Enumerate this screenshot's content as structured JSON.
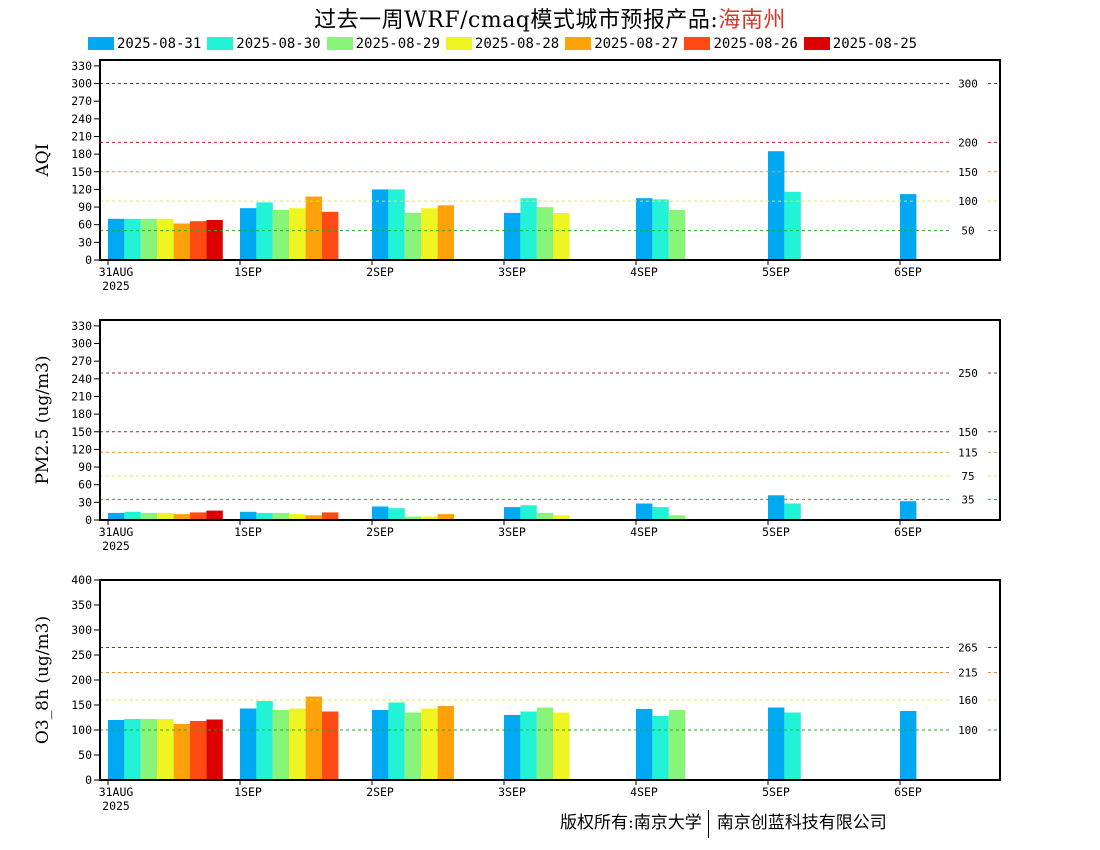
{
  "title": {
    "main": "过去一周WRF/cmaq模式城市预报产品:",
    "place": "海南州"
  },
  "series_names": [
    "2025-08-31",
    "2025-08-30",
    "2025-08-29",
    "2025-08-28",
    "2025-08-27",
    "2025-08-26",
    "2025-08-25"
  ],
  "series_colors": [
    "#00a9f2",
    "#22f2d6",
    "#88f57a",
    "#eef521",
    "#ffa20a",
    "#ff4a14",
    "#dc0000"
  ],
  "copyright": {
    "left": "版权所有:南京大学",
    "right": "南京创蓝科技有限公司"
  },
  "chart_data": [
    {
      "type": "bar",
      "ylabel": "AQI",
      "ylim": [
        0,
        340
      ],
      "yticks": [
        0,
        30,
        60,
        90,
        120,
        150,
        180,
        210,
        240,
        270,
        300,
        330
      ],
      "day_labels": [
        "31AUG",
        "1SEP",
        "2SEP",
        "3SEP",
        "4SEP",
        "5SEP",
        "6SEP"
      ],
      "year_label": "2025",
      "thresholds": [
        {
          "value": 300,
          "label": "300",
          "color": "#9b1f57"
        },
        {
          "value": 200,
          "label": "200",
          "color": "#d60f0f"
        },
        {
          "value": 150,
          "label": "150",
          "color": "#ff8c1a"
        },
        {
          "value": 100,
          "label": "100",
          "color": "#e8e82a"
        },
        {
          "value": 50,
          "label": "50",
          "color": "#20b020"
        }
      ],
      "series": [
        {
          "name": "2025-08-31",
          "values": [
            70,
            88,
            120,
            80,
            105,
            185,
            112
          ]
        },
        {
          "name": "2025-08-30",
          "values": [
            70,
            98,
            120,
            105,
            103,
            116
          ]
        },
        {
          "name": "2025-08-29",
          "values": [
            70,
            85,
            80,
            90,
            85
          ]
        },
        {
          "name": "2025-08-28",
          "values": [
            70,
            88,
            88,
            80
          ]
        },
        {
          "name": "2025-08-27",
          "values": [
            62,
            108,
            93
          ]
        },
        {
          "name": "2025-08-26",
          "values": [
            66,
            82
          ]
        },
        {
          "name": "2025-08-25",
          "values": [
            68
          ]
        }
      ]
    },
    {
      "type": "bar",
      "ylabel": "PM2.5 (ug/m3)",
      "ylim": [
        0,
        340
      ],
      "yticks": [
        0,
        30,
        60,
        90,
        120,
        150,
        180,
        210,
        240,
        270,
        300,
        330
      ],
      "day_labels": [
        "31AUG",
        "1SEP",
        "2SEP",
        "3SEP",
        "4SEP",
        "5SEP",
        "6SEP"
      ],
      "year_label": "2025",
      "thresholds": [
        {
          "value": 250,
          "label": "250",
          "color": "#9b1f57"
        },
        {
          "value": 150,
          "label": "150",
          "color": "#d60f0f"
        },
        {
          "value": 115,
          "label": "115",
          "color": "#ff8c1a"
        },
        {
          "value": 75,
          "label": "75",
          "color": "#e8e82a"
        },
        {
          "value": 35,
          "label": "35",
          "color": "#20b020"
        }
      ],
      "series": [
        {
          "name": "2025-08-31",
          "values": [
            12,
            14,
            23,
            22,
            28,
            42,
            32
          ]
        },
        {
          "name": "2025-08-30",
          "values": [
            14,
            12,
            20,
            25,
            22,
            28
          ]
        },
        {
          "name": "2025-08-29",
          "values": [
            12,
            12,
            6,
            12,
            8
          ]
        },
        {
          "name": "2025-08-28",
          "values": [
            12,
            10,
            6,
            8
          ]
        },
        {
          "name": "2025-08-27",
          "values": [
            10,
            8,
            10
          ]
        },
        {
          "name": "2025-08-26",
          "values": [
            13,
            13
          ]
        },
        {
          "name": "2025-08-25",
          "values": [
            16
          ]
        }
      ]
    },
    {
      "type": "bar",
      "ylabel": "O3_8h (ug/m3)",
      "ylim": [
        0,
        400
      ],
      "yticks": [
        0,
        50,
        100,
        150,
        200,
        250,
        300,
        350,
        400
      ],
      "day_labels": [
        "31AUG",
        "1SEP",
        "2SEP",
        "3SEP",
        "4SEP",
        "5SEP",
        "6SEP"
      ],
      "year_label": "2025",
      "thresholds": [
        {
          "value": 265,
          "label": "265",
          "color": "#d60f0f"
        },
        {
          "value": 215,
          "label": "215",
          "color": "#ff8c1a"
        },
        {
          "value": 160,
          "label": "160",
          "color": "#e8e82a"
        },
        {
          "value": 100,
          "label": "100",
          "color": "#20b020"
        }
      ],
      "series": [
        {
          "name": "2025-08-31",
          "values": [
            120,
            143,
            140,
            130,
            142,
            145,
            138
          ]
        },
        {
          "name": "2025-08-30",
          "values": [
            122,
            158,
            155,
            137,
            128,
            135
          ]
        },
        {
          "name": "2025-08-29",
          "values": [
            122,
            140,
            135,
            145,
            140
          ]
        },
        {
          "name": "2025-08-28",
          "values": [
            122,
            143,
            143,
            135
          ]
        },
        {
          "name": "2025-08-27",
          "values": [
            112,
            167,
            148
          ]
        },
        {
          "name": "2025-08-26",
          "values": [
            118,
            137
          ]
        },
        {
          "name": "2025-08-25",
          "values": [
            121
          ]
        }
      ]
    }
  ]
}
